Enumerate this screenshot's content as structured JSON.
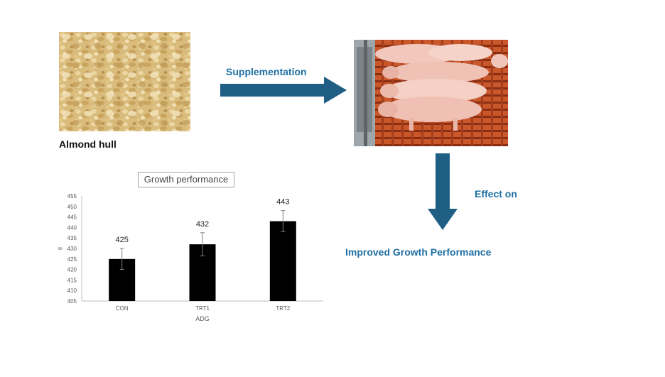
{
  "labels": {
    "almond_caption": "Almond hull",
    "supplementation": "Supplementation",
    "effect_on": "Effect on",
    "result": "Improved Growth Performance"
  },
  "colors": {
    "arrow": "#1f5f86",
    "label_blue": "#1f6fa3",
    "bar": "#000000"
  },
  "chart_data": {
    "type": "bar",
    "title": "Growth performance",
    "categories": [
      "CON",
      "TRT1",
      "TRT2"
    ],
    "values": [
      425,
      432,
      443
    ],
    "error": [
      5,
      5.5,
      5
    ],
    "data_labels": [
      "425",
      "432",
      "443"
    ],
    "xlabel": "ADG",
    "ylabel": "g",
    "ylim": [
      405,
      455
    ],
    "yticks": [
      405,
      410,
      415,
      420,
      425,
      430,
      435,
      440,
      445,
      450,
      455
    ],
    "grid": false,
    "legend": "none"
  }
}
